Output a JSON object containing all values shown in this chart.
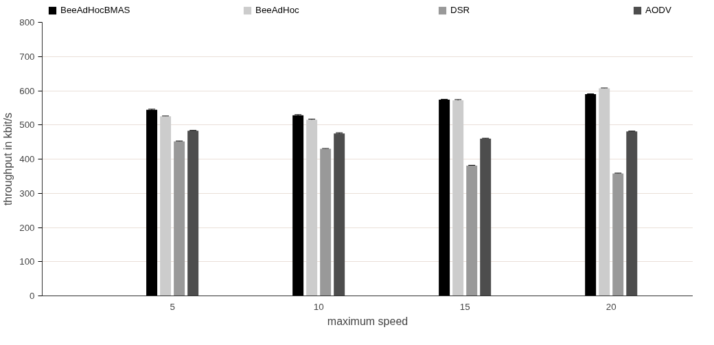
{
  "chart_data": {
    "type": "bar",
    "xlabel": "maximum speed",
    "ylabel": "throughput in kbit/s",
    "categories": [
      "5",
      "10",
      "15",
      "20"
    ],
    "series": [
      {
        "name": "BeeAdHocBMAS",
        "color": "#000000",
        "values": [
          544,
          528,
          574,
          590
        ],
        "errors": [
          2,
          2,
          1,
          1
        ]
      },
      {
        "name": "BeeAdHoc",
        "color": "#cccccc",
        "values": [
          525,
          515,
          572,
          607
        ],
        "errors": [
          1,
          2,
          2,
          1
        ]
      },
      {
        "name": "DSR",
        "color": "#999999",
        "values": [
          452,
          430,
          381,
          358
        ],
        "errors": [
          1,
          1,
          1,
          1
        ]
      },
      {
        "name": "AODV",
        "color": "#4d4d4d",
        "values": [
          483,
          475,
          460,
          481
        ],
        "errors": [
          1,
          2,
          1,
          1
        ]
      }
    ],
    "ylim": [
      0,
      800
    ],
    "yticks": [
      0,
      100,
      200,
      300,
      400,
      500,
      600,
      700,
      800
    ],
    "grid": "y",
    "legend": "top"
  }
}
